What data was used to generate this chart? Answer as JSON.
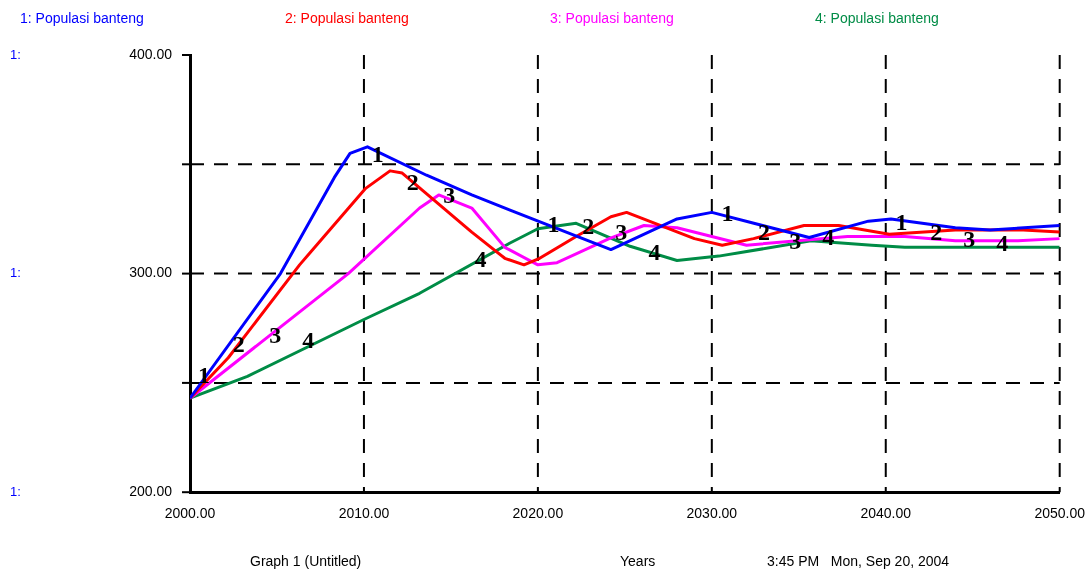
{
  "chart_data": {
    "type": "line",
    "xlabel": "Years",
    "legend": "top",
    "xlim": [
      2000,
      2050
    ],
    "xticks": [
      {
        "value": 2000,
        "label": "2000.00"
      },
      {
        "value": 2010,
        "label": "2010.00"
      },
      {
        "value": 2020,
        "label": "2020.00"
      },
      {
        "value": 2030,
        "label": "2030.00"
      },
      {
        "value": 2040,
        "label": "2040.00"
      },
      {
        "value": 2050,
        "label": "2050.00"
      }
    ],
    "ylim": [
      200,
      400
    ],
    "yticks": [
      {
        "value": 200,
        "label": "200.00"
      },
      {
        "value": 250,
        "label": null
      },
      {
        "value": 300,
        "label": "300.00"
      },
      {
        "value": 350,
        "label": null
      },
      {
        "value": 400,
        "label": "400.00"
      }
    ],
    "grid": true,
    "series": [
      {
        "name": "1: Populasi banteng",
        "color": "#0000ff",
        "x": [
          2000,
          2005.2,
          2008.3,
          2009.2,
          2010.2,
          2013.6,
          2016.2,
          2018.4,
          2024.2,
          2028,
          2030,
          2035.6,
          2039,
          2040.3,
          2044,
          2046,
          2050
        ],
        "values": [
          243,
          300,
          344,
          355,
          358,
          345,
          336,
          329,
          311,
          325,
          328,
          316.5,
          324,
          325,
          321,
          320,
          322
        ]
      },
      {
        "name": "2: Populasi banteng",
        "color": "#ff0000",
        "x": [
          2000,
          2002.2,
          2006.3,
          2010.1,
          2011.5,
          2012.2,
          2016.2,
          2018.1,
          2019.2,
          2020.1,
          2022.2,
          2024.2,
          2025.1,
          2029,
          2030.6,
          2032.4,
          2035.3,
          2037.3,
          2040.2,
          2044,
          2047.9,
          2050
        ],
        "values": [
          243,
          261.5,
          304,
          339,
          347,
          346,
          319,
          307,
          304,
          307,
          317,
          326,
          328,
          316,
          313,
          316,
          322,
          322,
          318,
          320,
          320,
          319
        ]
      },
      {
        "name": "3: Populasi banteng",
        "color": "#ff00ff",
        "x": [
          2000,
          2009.1,
          2013.2,
          2014.3,
          2016.2,
          2018.1,
          2020,
          2021.1,
          2024.1,
          2026.1,
          2028,
          2032,
          2037.8,
          2041.1,
          2044,
          2047.6,
          2050
        ],
        "values": [
          243,
          300,
          330,
          336,
          330,
          312,
          304,
          305,
          316,
          322,
          321,
          313,
          317,
          317,
          315,
          315,
          316
        ]
      },
      {
        "name": "4: Populasi banteng",
        "color": "#008c46",
        "x": [
          2000,
          2003.3,
          2010,
          2013.2,
          2018.4,
          2020,
          2022.2,
          2025.3,
          2028,
          2030.4,
          2035.7,
          2039.2,
          2041.1,
          2050
        ],
        "values": [
          243,
          253,
          279,
          291,
          314,
          320.5,
          323,
          312.5,
          306,
          308,
          315,
          313,
          312,
          312
        ]
      }
    ],
    "annotations": [
      "Graph 1 (Untitled)",
      "3:45 PM   Mon, Sep 20, 2004",
      "1:",
      "1:",
      "1:",
      {
        "text": "1",
        "x": 2000.8,
        "y": 253
      },
      {
        "text": "1",
        "x": 2010.8,
        "y": 354
      },
      {
        "text": "1",
        "x": 2020.9,
        "y": 322
      },
      {
        "text": "1",
        "x": 2030.9,
        "y": 327
      },
      {
        "text": "1",
        "x": 2040.9,
        "y": 323
      },
      {
        "text": "2",
        "x": 2002.8,
        "y": 267
      },
      {
        "text": "2",
        "x": 2012.8,
        "y": 341
      },
      {
        "text": "2",
        "x": 2022.9,
        "y": 321
      },
      {
        "text": "2",
        "x": 2033,
        "y": 318
      },
      {
        "text": "2",
        "x": 2042.9,
        "y": 318
      },
      {
        "text": "3",
        "x": 2004.9,
        "y": 271
      },
      {
        "text": "3",
        "x": 2014.9,
        "y": 335
      },
      {
        "text": "3",
        "x": 2024.8,
        "y": 318
      },
      {
        "text": "3",
        "x": 2034.8,
        "y": 314
      },
      {
        "text": "3",
        "x": 2044.8,
        "y": 315
      },
      {
        "text": "4",
        "x": 2006.8,
        "y": 269
      },
      {
        "text": "4",
        "x": 2016.7,
        "y": 306
      },
      {
        "text": "4",
        "x": 2026.7,
        "y": 309
      },
      {
        "text": "4",
        "x": 2036.7,
        "y": 316
      },
      {
        "text": "4",
        "x": 2046.7,
        "y": 313
      }
    ]
  }
}
